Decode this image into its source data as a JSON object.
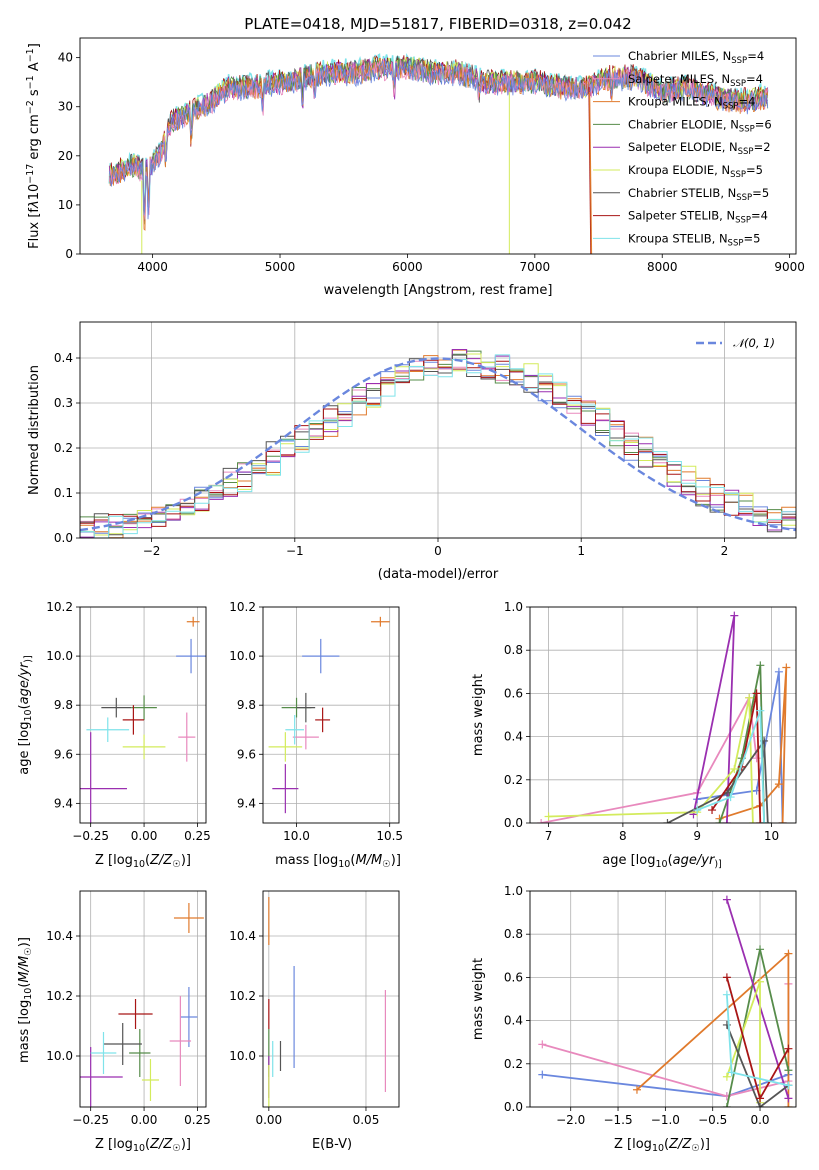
{
  "figure_title": "PLATE=0418, MJD=51817, FIBERID=0318, z=0.042",
  "models": [
    {
      "name": "Chabrier MILES",
      "nssp": "4",
      "color": "#6a87de"
    },
    {
      "name": "Salpeter MILES",
      "nssp": "4",
      "color": "#e889bd"
    },
    {
      "name": "Kroupa MILES",
      "nssp": "4",
      "color": "#e07a2c"
    },
    {
      "name": "Chabrier ELODIE",
      "nssp": "6",
      "color": "#568c4a"
    },
    {
      "name": "Salpeter ELODIE",
      "nssp": "2",
      "color": "#9a2fb0"
    },
    {
      "name": "Kroupa ELODIE",
      "nssp": "5",
      "color": "#d3eb5c"
    },
    {
      "name": "Chabrier STELIB",
      "nssp": "5",
      "color": "#555555"
    },
    {
      "name": "Salpeter STELIB",
      "nssp": "4",
      "color": "#a81616"
    },
    {
      "name": "Kroupa STELIB",
      "nssp": "5",
      "color": "#7fe3ea"
    }
  ],
  "legend_nssp_prefix": "N",
  "legend_nssp_sub": "SSP",
  "chart_data": [
    {
      "id": "spectrum",
      "type": "line",
      "xlabel": "wavelength [Angstrom, rest frame]",
      "ylabel_parts": [
        "Flux [f",
        "λ",
        "10",
        "−17",
        " erg cm",
        "−2",
        " s",
        "−1",
        " A",
        "−1",
        "]"
      ],
      "xlim": [
        3430,
        9050
      ],
      "ylim": [
        0,
        44
      ],
      "xticks": [
        "4000",
        "5000",
        "6000",
        "7000",
        "8000",
        "9000"
      ],
      "yticks": [
        "0",
        "10",
        "20",
        "30",
        "40"
      ],
      "x_values": [
        3680,
        3750,
        3850,
        3950,
        4050,
        4150,
        4300,
        4450,
        4600,
        4800,
        5000,
        5200,
        5400,
        5600,
        5800,
        6000,
        6200,
        6400,
        6600,
        6800,
        7000,
        7200,
        7400,
        7600,
        7800,
        8000,
        8200,
        8400,
        8600,
        8830
      ],
      "y_values": [
        16,
        17,
        18,
        17,
        20,
        27,
        29,
        31,
        34,
        34,
        35,
        36,
        37,
        37,
        38,
        38,
        37,
        37,
        35,
        35,
        35,
        34,
        34,
        36,
        36,
        33,
        34,
        32,
        31,
        32
      ]
    },
    {
      "id": "residuals",
      "type": "histogram",
      "xlabel": "(data-model)/error",
      "ylabel": "Normed distribution",
      "xlim": [
        -2.5,
        2.5
      ],
      "ylim": [
        0,
        0.48
      ],
      "xticks": [
        "−2",
        "−1",
        "0",
        "1",
        "2"
      ],
      "yticks": [
        "0.0",
        "0.1",
        "0.2",
        "0.3",
        "0.4"
      ],
      "reference_label": "𝒩(0, 1)",
      "reference": "normal distribution, mean 0, sigma 1",
      "bin_width": 0.1
    },
    {
      "id": "age-vs-Z",
      "type": "scatter",
      "xlabel_parts": [
        "Z [log",
        "10",
        "(",
        "Z/Z",
        "☉",
        ")]"
      ],
      "ylabel_parts": [
        "age  [log",
        "10",
        "(",
        "age/yr",
        ")]"
      ],
      "xlim": [
        -0.3,
        0.29
      ],
      "ylim": [
        9.32,
        10.2
      ],
      "xticks": [
        "−0.25",
        "0.00",
        "0.25"
      ],
      "yticks": [
        "9.4",
        "9.6",
        "9.8",
        "10.0",
        "10.2"
      ],
      "points": [
        {
          "x": 0.22,
          "y": 10.0,
          "xerr": 0.07,
          "yerr": 0.07
        },
        {
          "x": 0.2,
          "y": 9.67,
          "xerr": 0.04,
          "yerr": 0.1
        },
        {
          "x": 0.23,
          "y": 10.14,
          "xerr": 0.03,
          "yerr": 0.02
        },
        {
          "x": 0.0,
          "y": 9.79,
          "xerr": 0.06,
          "yerr": 0.05
        },
        {
          "x": -0.25,
          "y": 9.46,
          "xerr": 0.17,
          "yerr": 0.23
        },
        {
          "x": 0.0,
          "y": 9.63,
          "xerr": 0.1,
          "yerr": 0.05
        },
        {
          "x": -0.13,
          "y": 9.79,
          "xerr": 0.07,
          "yerr": 0.04
        },
        {
          "x": -0.05,
          "y": 9.74,
          "xerr": 0.05,
          "yerr": 0.06
        },
        {
          "x": -0.17,
          "y": 9.7,
          "xerr": 0.1,
          "yerr": 0.05
        }
      ]
    },
    {
      "id": "age-vs-mass",
      "type": "scatter",
      "xlabel_parts": [
        "mass [log",
        "10",
        "(",
        "M/M",
        "☉",
        ")]"
      ],
      "xlim": [
        9.82,
        10.55
      ],
      "ylim": [
        9.32,
        10.2
      ],
      "xticks": [
        "10.0",
        "10.5"
      ],
      "yticks": [
        "9.4",
        "9.6",
        "9.8",
        "10.0",
        "10.2"
      ],
      "points": [
        {
          "x": 10.13,
          "y": 10.0,
          "xerr": 0.1,
          "yerr": 0.07
        },
        {
          "x": 10.05,
          "y": 9.67,
          "xerr": 0.07,
          "yerr": 0.05
        },
        {
          "x": 10.45,
          "y": 10.14,
          "xerr": 0.05,
          "yerr": 0.02
        },
        {
          "x": 10.0,
          "y": 9.79,
          "xerr": 0.08,
          "yerr": 0.04
        },
        {
          "x": 9.94,
          "y": 9.46,
          "xerr": 0.07,
          "yerr": 0.1
        },
        {
          "x": 9.94,
          "y": 9.63,
          "xerr": 0.09,
          "yerr": 0.06
        },
        {
          "x": 10.05,
          "y": 9.79,
          "xerr": 0.05,
          "yerr": 0.06
        },
        {
          "x": 10.14,
          "y": 9.74,
          "xerr": 0.04,
          "yerr": 0.05
        },
        {
          "x": 9.99,
          "y": 9.7,
          "xerr": 0.05,
          "yerr": 0.06
        }
      ]
    },
    {
      "id": "mass-weight-vs-age",
      "type": "line",
      "xlabel_parts": [
        "age  [log",
        "10",
        "(",
        "age/yr",
        ")]"
      ],
      "ylabel": "mass weight",
      "xlim": [
        6.75,
        10.33
      ],
      "ylim": [
        0,
        1.0
      ],
      "xticks": [
        "7",
        "8",
        "9",
        "10"
      ],
      "yticks": [
        "0.0",
        "0.2",
        "0.4",
        "0.6",
        "0.8",
        "1.0"
      ],
      "series": [
        {
          "model": 0,
          "x": [
            9.0,
            9.8,
            10.1,
            10.15
          ],
          "y": [
            0.11,
            0.15,
            0.7,
            0.0
          ]
        },
        {
          "model": 1,
          "x": [
            6.9,
            9.0,
            9.7,
            9.8
          ],
          "y": [
            0.0,
            0.14,
            0.58,
            0.3
          ]
        },
        {
          "model": 2,
          "x": [
            9.3,
            9.85,
            10.1,
            10.2,
            10.15
          ],
          "y": [
            0.02,
            0.08,
            0.18,
            0.72,
            0.0
          ]
        },
        {
          "model": 3,
          "x": [
            9.3,
            9.6,
            9.85,
            9.9
          ],
          "y": [
            0.0,
            0.3,
            0.73,
            0.0
          ]
        },
        {
          "model": 4,
          "x": [
            8.95,
            9.5,
            9.4
          ],
          "y": [
            0.04,
            0.96,
            0.0
          ]
        },
        {
          "model": 5,
          "x": [
            7.0,
            9.0,
            9.5,
            9.7,
            9.75
          ],
          "y": [
            0.03,
            0.05,
            0.25,
            0.58,
            0.0
          ]
        },
        {
          "model": 6,
          "x": [
            8.6,
            9.4,
            9.9,
            9.95
          ],
          "y": [
            0.0,
            0.14,
            0.38,
            0.0
          ]
        },
        {
          "model": 7,
          "x": [
            9.2,
            9.6,
            9.8,
            9.85
          ],
          "y": [
            0.06,
            0.26,
            0.6,
            0.0
          ]
        },
        {
          "model": 8,
          "x": [
            9.0,
            9.45,
            9.85,
            9.9
          ],
          "y": [
            0.06,
            0.12,
            0.52,
            0.0
          ]
        }
      ]
    },
    {
      "id": "mass-vs-Z",
      "type": "scatter",
      "xlabel_parts": [
        "Z [log",
        "10",
        "(",
        "Z/Z",
        "☉",
        ")]"
      ],
      "ylabel_parts": [
        "mass [log",
        "10",
        "(",
        "M/M",
        "☉",
        ")]"
      ],
      "xlim": [
        -0.3,
        0.29
      ],
      "ylim": [
        9.83,
        10.55
      ],
      "xticks": [
        "−0.25",
        "0.00",
        "0.25"
      ],
      "yticks": [
        "10.0",
        "10.2",
        "10.4"
      ],
      "points": [
        {
          "x": 0.21,
          "y": 10.13,
          "xerr": 0.04,
          "yerr": 0.1
        },
        {
          "x": 0.17,
          "y": 10.05,
          "xerr": 0.05,
          "yerr": 0.15
        },
        {
          "x": 0.21,
          "y": 10.46,
          "xerr": 0.07,
          "yerr": 0.05
        },
        {
          "x": -0.02,
          "y": 10.01,
          "xerr": 0.05,
          "yerr": 0.08
        },
        {
          "x": -0.25,
          "y": 9.93,
          "xerr": 0.15,
          "yerr": 0.1
        },
        {
          "x": 0.03,
          "y": 9.92,
          "xerr": 0.04,
          "yerr": 0.07
        },
        {
          "x": -0.1,
          "y": 10.04,
          "xerr": 0.09,
          "yerr": 0.07
        },
        {
          "x": -0.04,
          "y": 10.14,
          "xerr": 0.08,
          "yerr": 0.05
        },
        {
          "x": -0.19,
          "y": 10.01,
          "xerr": 0.06,
          "yerr": 0.07
        }
      ]
    },
    {
      "id": "mass-vs-EBV",
      "type": "scatter",
      "xlabel": "E(B-V)",
      "xlim": [
        -0.003,
        0.067
      ],
      "ylim": [
        9.83,
        10.55
      ],
      "xticks": [
        "0.00",
        "0.05"
      ],
      "yticks": [
        "10.0",
        "10.2",
        "10.4"
      ],
      "points": [
        {
          "x": 0.013,
          "y": 10.13,
          "xerr": 0,
          "yerr": 0.17
        },
        {
          "x": 0.06,
          "y": 10.05,
          "xerr": 0,
          "yerr": 0.17
        },
        {
          "x": 0.0,
          "y": 10.45,
          "xerr": 0,
          "yerr": 0.08
        },
        {
          "x": 0.0,
          "y": 10.01,
          "xerr": 0,
          "yerr": 0.08
        },
        {
          "x": 0.0,
          "y": 9.93,
          "xerr": 0,
          "yerr": 0.07
        },
        {
          "x": 0.0,
          "y": 9.9,
          "xerr": 0,
          "yerr": 0.07
        },
        {
          "x": 0.006,
          "y": 10.0,
          "xerr": 0,
          "yerr": 0.05
        },
        {
          "x": 0.0,
          "y": 10.14,
          "xerr": 0,
          "yerr": 0.05
        },
        {
          "x": 0.002,
          "y": 9.99,
          "xerr": 0,
          "yerr": 0.06
        }
      ]
    },
    {
      "id": "mass-weight-vs-Z",
      "type": "line",
      "xlabel_parts": [
        "Z [log",
        "10",
        "(",
        "Z/Z",
        "☉",
        ")]"
      ],
      "ylabel": "mass weight",
      "xlim": [
        -2.43,
        0.38
      ],
      "ylim": [
        0,
        1.0
      ],
      "xticks": [
        "−2.0",
        "−1.5",
        "−1.0",
        "−0.5",
        "0.0"
      ],
      "yticks": [
        "0.0",
        "0.2",
        "0.4",
        "0.6",
        "0.8",
        "1.0"
      ],
      "series": [
        {
          "model": 0,
          "x": [
            -2.3,
            -0.35,
            0.3
          ],
          "y": [
            0.15,
            0.05,
            0.15
          ]
        },
        {
          "model": 1,
          "x": [
            -2.3,
            -0.35,
            0.3,
            0.3
          ],
          "y": [
            0.29,
            0.05,
            0.12,
            0.57
          ]
        },
        {
          "model": 2,
          "x": [
            -1.3,
            0.3,
            0.3
          ],
          "y": [
            0.08,
            0.71,
            0.0
          ]
        },
        {
          "model": 3,
          "x": [
            -0.35,
            0.0,
            0.3
          ],
          "y": [
            0.0,
            0.73,
            0.17
          ]
        },
        {
          "model": 4,
          "x": [
            -0.35,
            0.3
          ],
          "y": [
            0.96,
            0.04
          ]
        },
        {
          "model": 5,
          "x": [
            -0.35,
            0.0,
            0.0
          ],
          "y": [
            0.14,
            0.58,
            0.02
          ]
        },
        {
          "model": 6,
          "x": [
            -0.35,
            0.0,
            0.3
          ],
          "y": [
            0.38,
            0.0,
            0.1
          ]
        },
        {
          "model": 7,
          "x": [
            -0.35,
            0.0,
            0.3
          ],
          "y": [
            0.6,
            0.04,
            0.27
          ]
        },
        {
          "model": 8,
          "x": [
            -0.35,
            -0.3,
            0.3
          ],
          "y": [
            0.52,
            0.16,
            0.1
          ]
        }
      ]
    }
  ]
}
